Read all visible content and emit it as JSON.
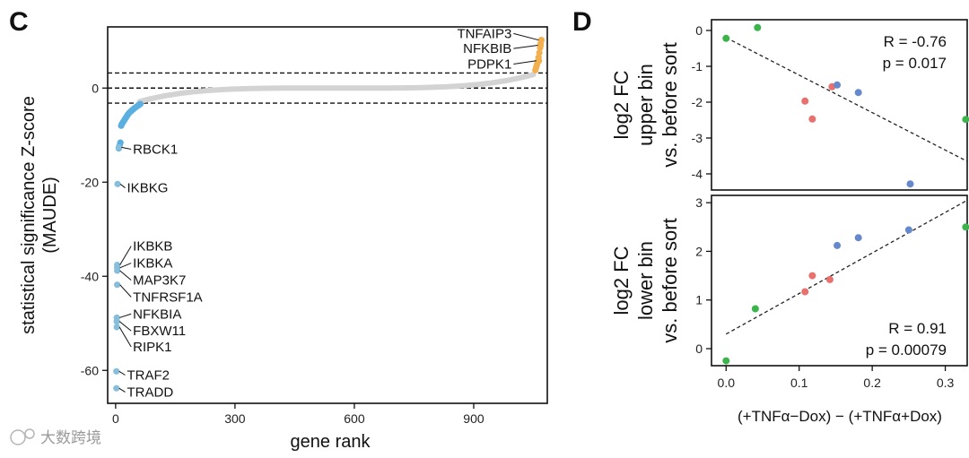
{
  "panel_labels": {
    "c": "C",
    "d": "D"
  },
  "watermark": "大数跨境",
  "chart_data": [
    {
      "type": "scatter",
      "panel": "C",
      "title": "",
      "xlabel": "gene rank",
      "ylabel_lines": [
        "statistical significance Z-score",
        "(MAUDE)"
      ],
      "xlim": [
        -20,
        1085
      ],
      "ylim": [
        -67,
        13
      ],
      "xticks": [
        0,
        300,
        600,
        900
      ],
      "yticks": [
        0,
        -20,
        -40,
        -60
      ],
      "threshold_lines": [
        3.2,
        0,
        -3.2
      ],
      "colors": {
        "background": "#d3d3d3",
        "negative": "#5aaee0",
        "positive": "#f2b04f",
        "label_point": "#86bedc"
      },
      "background_range": {
        "start_rank": 60,
        "end_rank": 1050,
        "start_z": -3.2,
        "end_z": 3.0
      },
      "negative_hits": [
        {
          "rank": 8,
          "z": -12.8
        },
        {
          "rank": 10,
          "z": -12.2
        },
        {
          "rank": 12,
          "z": -11.6
        },
        {
          "rank": 14,
          "z": -8.0
        },
        {
          "rank": 16,
          "z": -7.6
        },
        {
          "rank": 19,
          "z": -7.2
        },
        {
          "rank": 22,
          "z": -6.8
        },
        {
          "rank": 25,
          "z": -6.4
        },
        {
          "rank": 28,
          "z": -6.0
        },
        {
          "rank": 31,
          "z": -5.6
        },
        {
          "rank": 35,
          "z": -5.2
        },
        {
          "rank": 39,
          "z": -4.9
        },
        {
          "rank": 43,
          "z": -4.6
        },
        {
          "rank": 47,
          "z": -4.3
        },
        {
          "rank": 52,
          "z": -4.0
        },
        {
          "rank": 57,
          "z": -3.7
        },
        {
          "rank": 62,
          "z": -3.4
        }
      ],
      "positive_hits": [
        {
          "rank": 1055,
          "z": 3.8
        },
        {
          "rank": 1057,
          "z": 4.4
        },
        {
          "rank": 1059,
          "z": 5.0
        },
        {
          "rank": 1061,
          "z": 5.6
        },
        {
          "rank": 1063,
          "z": 6.5
        },
        {
          "rank": 1065,
          "z": 7.5
        },
        {
          "rank": 1067,
          "z": 8.6
        },
        {
          "rank": 1068,
          "z": 9.4
        },
        {
          "rank": 1070,
          "z": 10.2
        }
      ],
      "labeled_genes": [
        {
          "name": "TNFAIP3",
          "rank": 1070,
          "z": 10.2,
          "side": "left",
          "text_x_rank": 1000,
          "text_z": 11.6
        },
        {
          "name": "NFKBIB",
          "rank": 1068,
          "z": 9.1,
          "side": "left",
          "text_x_rank": 1000,
          "text_z": 8.4
        },
        {
          "name": "PDPK1",
          "rank": 1064,
          "z": 5.8,
          "side": "left",
          "text_x_rank": 1000,
          "text_z": 5.1
        },
        {
          "name": "RBCK1",
          "rank": 8,
          "z": -12.6,
          "side": "right",
          "text_x_rank": 30,
          "text_z": -13.0
        },
        {
          "name": "IKBKG",
          "rank": 5,
          "z": -20.4,
          "side": "right",
          "text_x_rank": 15,
          "text_z": -21.2
        },
        {
          "name": "IKBKB",
          "rank": 4,
          "z": -37.6,
          "side": "right",
          "text_x_rank": 30,
          "text_z": -33.6
        },
        {
          "name": "IKBKA",
          "rank": 4,
          "z": -38.2,
          "side": "right",
          "text_x_rank": 30,
          "text_z": -37.2
        },
        {
          "name": "MAP3K7",
          "rank": 4,
          "z": -38.8,
          "side": "right",
          "text_x_rank": 30,
          "text_z": -40.8
        },
        {
          "name": "TNFRSF1A",
          "rank": 4,
          "z": -41.8,
          "side": "right",
          "text_x_rank": 30,
          "text_z": -44.4
        },
        {
          "name": "NFKBIA",
          "rank": 3,
          "z": -48.8,
          "side": "right",
          "text_x_rank": 30,
          "text_z": -48.0
        },
        {
          "name": "FBXW11",
          "rank": 3,
          "z": -49.6,
          "side": "right",
          "text_x_rank": 30,
          "text_z": -51.6
        },
        {
          "name": "RIPK1",
          "rank": 3,
          "z": -50.8,
          "side": "right",
          "text_x_rank": 30,
          "text_z": -55.0
        },
        {
          "name": "TRAF2",
          "rank": 2,
          "z": -60.2,
          "side": "right",
          "text_x_rank": 15,
          "text_z": -61.0
        },
        {
          "name": "TRADD",
          "rank": 2,
          "z": -63.8,
          "side": "right",
          "text_x_rank": 15,
          "text_z": -64.6
        }
      ]
    },
    {
      "type": "scatter",
      "panel": "D-top",
      "ylabel_lines": [
        "log2 FC",
        "upper bin",
        "vs. before sort"
      ],
      "xlim": [
        -0.02,
        0.33
      ],
      "ylim": [
        -4.45,
        0.3
      ],
      "yticks": [
        0,
        -1,
        -2,
        -3,
        -4
      ],
      "stats": {
        "r": "R = -0.76",
        "p": "p = 0.017"
      },
      "trend": {
        "x0": 0.0,
        "y0": -0.2,
        "x1": 0.33,
        "y1": -3.65
      },
      "points": [
        {
          "x": 0.0,
          "y": -0.22,
          "color": "#3db44b"
        },
        {
          "x": 0.043,
          "y": 0.08,
          "color": "#3db44b"
        },
        {
          "x": 0.328,
          "y": -2.48,
          "color": "#3db44b"
        },
        {
          "x": 0.108,
          "y": -1.97,
          "color": "#e8706d"
        },
        {
          "x": 0.118,
          "y": -2.47,
          "color": "#e8706d"
        },
        {
          "x": 0.145,
          "y": -1.57,
          "color": "#e8706d"
        },
        {
          "x": 0.152,
          "y": -1.52,
          "color": "#6688cc"
        },
        {
          "x": 0.181,
          "y": -1.73,
          "color": "#6688cc"
        },
        {
          "x": 0.252,
          "y": -4.28,
          "color": "#6688cc"
        }
      ]
    },
    {
      "type": "scatter",
      "panel": "D-bottom",
      "ylabel_lines": [
        "log2 FC",
        "lower bin",
        "vs. before sort"
      ],
      "xlabel": "(+TNFα−Dox) − (+TNFα+Dox)",
      "xlim": [
        -0.02,
        0.33
      ],
      "ylim": [
        -0.35,
        3.15
      ],
      "xticks": [
        0.0,
        0.1,
        0.2,
        0.3
      ],
      "xtick_labels": [
        "0.0",
        "0.1",
        "0.2",
        "0.3"
      ],
      "yticks": [
        0,
        1,
        2,
        3
      ],
      "stats": {
        "r": "R = 0.91",
        "p": "p = 0.00079"
      },
      "trend": {
        "x0": 0.0,
        "y0": 0.3,
        "x1": 0.33,
        "y1": 3.05
      },
      "points": [
        {
          "x": 0.0,
          "y": -0.25,
          "color": "#3db44b"
        },
        {
          "x": 0.04,
          "y": 0.82,
          "color": "#3db44b"
        },
        {
          "x": 0.328,
          "y": 2.5,
          "color": "#3db44b"
        },
        {
          "x": 0.108,
          "y": 1.17,
          "color": "#e8706d"
        },
        {
          "x": 0.118,
          "y": 1.5,
          "color": "#e8706d"
        },
        {
          "x": 0.142,
          "y": 1.42,
          "color": "#e8706d"
        },
        {
          "x": 0.152,
          "y": 2.12,
          "color": "#6688cc"
        },
        {
          "x": 0.181,
          "y": 2.28,
          "color": "#6688cc"
        },
        {
          "x": 0.25,
          "y": 2.44,
          "color": "#6688cc"
        }
      ]
    }
  ]
}
